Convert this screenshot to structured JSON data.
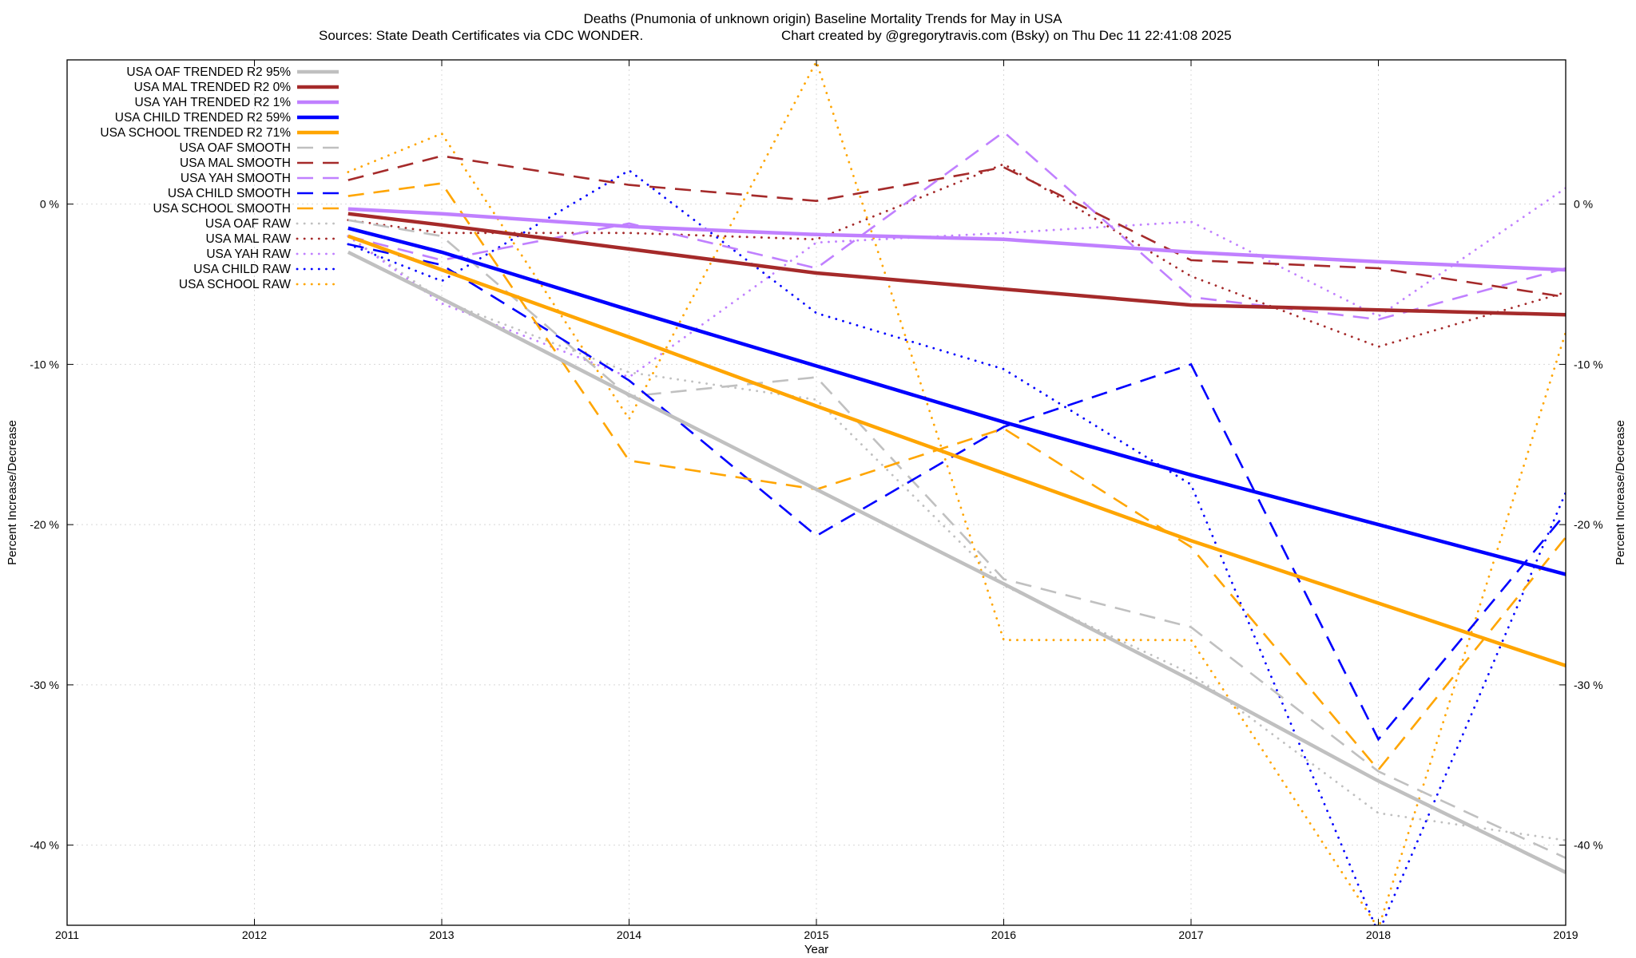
{
  "chart_data": {
    "type": "line",
    "title": "Deaths (Pnumonia of unknown origin)  Baseline Mortality Trends for May in USA",
    "subtitle_left": "Sources: State Death Certificates via CDC WONDER.",
    "subtitle_right": "Chart created by @gregorytravis.com (Bsky) on Thu Dec 11 22:41:08 2025",
    "xlabel": "Year",
    "ylabel": "Percent Increase/Decrease",
    "y2label": "Percent Increase/Decrease",
    "xlim": [
      2011,
      2019
    ],
    "ylim": [
      -45,
      9
    ],
    "x_ticks": [
      {
        "value": 2011,
        "label": "2011"
      },
      {
        "value": 2012,
        "label": "2012"
      },
      {
        "value": 2013,
        "label": "2013"
      },
      {
        "value": 2014,
        "label": "2014"
      },
      {
        "value": 2015,
        "label": "2015"
      },
      {
        "value": 2016,
        "label": "2016"
      },
      {
        "value": 2017,
        "label": "2017"
      },
      {
        "value": 2018,
        "label": "2018"
      },
      {
        "value": 2019,
        "label": "2019"
      }
    ],
    "y_ticks": [
      {
        "value": 0,
        "label": "0 %"
      },
      {
        "value": -10,
        "label": "-10 %"
      },
      {
        "value": -20,
        "label": "-20 %"
      },
      {
        "value": -30,
        "label": "-30 %"
      },
      {
        "value": -40,
        "label": "-40 %"
      }
    ],
    "grid": true,
    "legend_position": "top-left",
    "series": [
      {
        "name": "USA OAF TRENDED R2  95%",
        "color": "#c0c0c0",
        "style": "solid",
        "x": [
          2012.5,
          2013,
          2014,
          2015,
          2016,
          2017,
          2018,
          2019
        ],
        "y": [
          -3.0,
          -5.9,
          -11.9,
          -17.8,
          -23.7,
          -29.7,
          -36.0,
          -41.7
        ]
      },
      {
        "name": "USA MAL TRENDED R2   0%",
        "color": "#a52a2a",
        "style": "solid",
        "x": [
          2012.5,
          2013,
          2014,
          2015,
          2016,
          2017,
          2018,
          2019
        ],
        "y": [
          -0.6,
          -1.3,
          -2.8,
          -4.3,
          -5.3,
          -6.3,
          -6.6,
          -6.9
        ]
      },
      {
        "name": "USA YAH TRENDED R2   1%",
        "color": "#c080ff",
        "style": "solid",
        "x": [
          2012.5,
          2013,
          2014,
          2015,
          2016,
          2017,
          2018,
          2019
        ],
        "y": [
          -0.3,
          -0.6,
          -1.4,
          -1.9,
          -2.2,
          -3.0,
          -3.6,
          -4.1
        ]
      },
      {
        "name": "USA CHILD TRENDED R2  59%",
        "color": "#0000ff",
        "style": "solid",
        "x": [
          2012.5,
          2013,
          2014,
          2015,
          2016,
          2017,
          2018,
          2019
        ],
        "y": [
          -1.5,
          -3.0,
          -6.6,
          -10.1,
          -13.6,
          -16.9,
          -20.0,
          -23.1
        ]
      },
      {
        "name": "USA SCHOOL TRENDED R2  71%",
        "color": "#ffa500",
        "style": "solid",
        "x": [
          2012.5,
          2013,
          2014,
          2015,
          2016,
          2017,
          2018,
          2019
        ],
        "y": [
          -2.0,
          -4.1,
          -8.3,
          -12.6,
          -16.8,
          -21.0,
          -24.9,
          -28.8
        ]
      },
      {
        "name": "USA OAF SMOOTH",
        "color": "#c0c0c0",
        "style": "dashed",
        "x": [
          2012.5,
          2013,
          2014,
          2015,
          2016,
          2017,
          2018,
          2019
        ],
        "y": [
          -1.0,
          -2.0,
          -12.0,
          -10.8,
          -23.4,
          -26.4,
          -35.4,
          -40.8
        ]
      },
      {
        "name": "USA MAL SMOOTH",
        "color": "#a52a2a",
        "style": "dashed",
        "x": [
          2012.5,
          2013,
          2014,
          2015,
          2016,
          2017,
          2018,
          2019
        ],
        "y": [
          1.5,
          3.0,
          1.2,
          0.2,
          2.3,
          -3.5,
          -4.0,
          -5.8
        ]
      },
      {
        "name": "USA YAH SMOOTH",
        "color": "#c080ff",
        "style": "dashed",
        "x": [
          2012.5,
          2013,
          2014,
          2015,
          2016,
          2017,
          2018,
          2019
        ],
        "y": [
          -2.0,
          -3.5,
          -1.2,
          -4.0,
          4.5,
          -5.8,
          -7.2,
          -4.0
        ]
      },
      {
        "name": "USA CHILD SMOOTH",
        "color": "#0000ff",
        "style": "dashed",
        "x": [
          2012.5,
          2013,
          2014,
          2015,
          2016,
          2017,
          2018,
          2019
        ],
        "y": [
          -2.5,
          -3.8,
          -11.0,
          -20.7,
          -13.9,
          -10.0,
          -33.4,
          -19.3
        ]
      },
      {
        "name": "USA SCHOOL SMOOTH",
        "color": "#ffa500",
        "style": "dashed",
        "x": [
          2012.5,
          2013,
          2014,
          2015,
          2016,
          2017,
          2018,
          2019
        ],
        "y": [
          0.5,
          1.3,
          -16.0,
          -17.8,
          -14.0,
          -21.4,
          -35.3,
          -20.8
        ]
      },
      {
        "name": "USA OAF RAW",
        "color": "#c0c0c0",
        "style": "dotted",
        "x": [
          2012.5,
          2013,
          2014,
          2015,
          2016,
          2017,
          2018,
          2019
        ],
        "y": [
          -2.0,
          -6.0,
          -10.5,
          -12.2,
          -23.8,
          -29.3,
          -38.0,
          -39.7
        ]
      },
      {
        "name": "USA MAL RAW",
        "color": "#a52a2a",
        "style": "dotted",
        "x": [
          2012.5,
          2013,
          2014,
          2015,
          2016,
          2017,
          2018,
          2019
        ],
        "y": [
          -1.0,
          -1.8,
          -1.8,
          -2.2,
          2.5,
          -4.5,
          -8.9,
          -5.5
        ]
      },
      {
        "name": "USA YAH RAW",
        "color": "#c080ff",
        "style": "dotted",
        "x": [
          2012.5,
          2013,
          2014,
          2015,
          2016,
          2017,
          2018,
          2019
        ],
        "y": [
          -2.0,
          -6.2,
          -10.8,
          -2.4,
          -1.8,
          -1.1,
          -7.0,
          1.0
        ]
      },
      {
        "name": "USA CHILD RAW",
        "color": "#0000ff",
        "style": "dotted",
        "x": [
          2012.5,
          2013,
          2014,
          2015,
          2016,
          2017,
          2018,
          2019
        ],
        "y": [
          -2.5,
          -4.8,
          2.1,
          -6.8,
          -10.3,
          -17.5,
          -45.5,
          -18.0
        ]
      },
      {
        "name": "USA SCHOOL RAW",
        "color": "#ffa500",
        "style": "dotted",
        "x": [
          2012.5,
          2013,
          2014,
          2015,
          2016,
          2017,
          2018,
          2019
        ],
        "y": [
          2.0,
          4.4,
          -13.4,
          8.9,
          -27.2,
          -27.2,
          -45.2,
          -8.0
        ]
      }
    ]
  }
}
